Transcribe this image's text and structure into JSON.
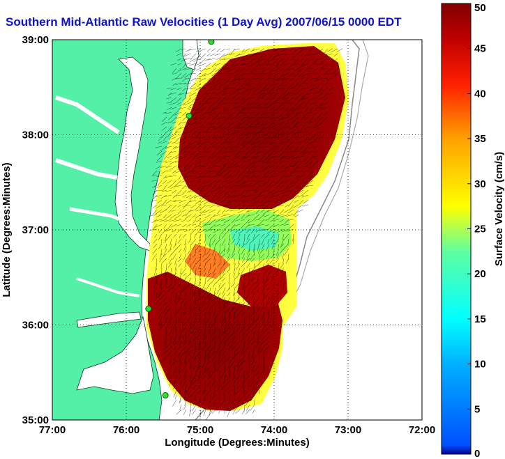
{
  "title": "Southern Mid-Atlantic Raw Velocities (1 Day Avg) 2007/06/15 0000 EDT",
  "map": {
    "xlabel": "Longitude (Degrees:Minutes)",
    "ylabel": "Latitude (Degrees:Minutes)",
    "lon_range": [
      -77,
      -72
    ],
    "lat_range": [
      35,
      39
    ],
    "x_ticks": [
      "77:00",
      "76:00",
      "75:00",
      "74:00",
      "73:00",
      "72:00"
    ],
    "y_ticks": [
      "39:00",
      "38:00",
      "37:00",
      "36:00",
      "35:00"
    ],
    "grid": "dotted",
    "land_color": "#55f0a8",
    "water_color": "#ffffff"
  },
  "colorbar": {
    "label": "Surface Velocity (cm/s)",
    "min": 0,
    "max": 50,
    "ticks": [
      "0",
      "5",
      "10",
      "15",
      "20",
      "25",
      "30",
      "35",
      "40",
      "45",
      "50"
    ],
    "colormap": "jet"
  },
  "stations": [
    {
      "lon": -74.85,
      "lat": 38.98
    },
    {
      "lon": -75.15,
      "lat": 38.2
    },
    {
      "lon": -75.7,
      "lat": 36.17
    },
    {
      "lon": -75.47,
      "lat": 35.26
    }
  ]
}
